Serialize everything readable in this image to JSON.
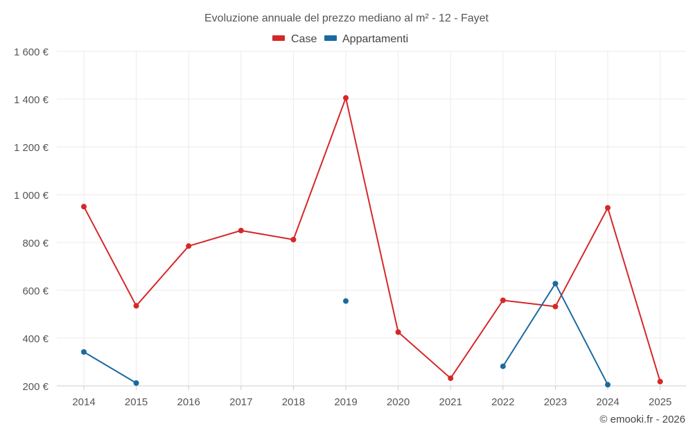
{
  "chart_data": {
    "type": "line",
    "title": "Evoluzione annuale del prezzo mediano al m² - 12 - Fayet",
    "x": [
      "2014",
      "2015",
      "2016",
      "2017",
      "2018",
      "2019",
      "2020",
      "2021",
      "2022",
      "2023",
      "2024",
      "2025"
    ],
    "series": [
      {
        "name": "Case",
        "color": "#d62728",
        "values": [
          950,
          535,
          785,
          850,
          812,
          1405,
          425,
          232,
          558,
          532,
          945,
          218
        ]
      },
      {
        "name": "Appartamenti",
        "color": "#1a6aa0",
        "values": [
          342,
          212,
          null,
          null,
          null,
          555,
          null,
          null,
          282,
          628,
          205,
          null
        ]
      }
    ],
    "ylim": [
      200,
      1600
    ],
    "yticks": [
      {
        "value": 1600,
        "label": "1 600 €"
      },
      {
        "value": 1400,
        "label": "1 400 €"
      },
      {
        "value": 1200,
        "label": "1 200 €"
      },
      {
        "value": 1000,
        "label": "1 000 €"
      },
      {
        "value": 800,
        "label": "800 €"
      },
      {
        "value": 600,
        "label": "600 €"
      },
      {
        "value": 400,
        "label": "400 €"
      },
      {
        "value": 200,
        "label": "200 €"
      }
    ],
    "grid": true,
    "legend_position": "top"
  },
  "credit": "© emooki.fr - 2026"
}
